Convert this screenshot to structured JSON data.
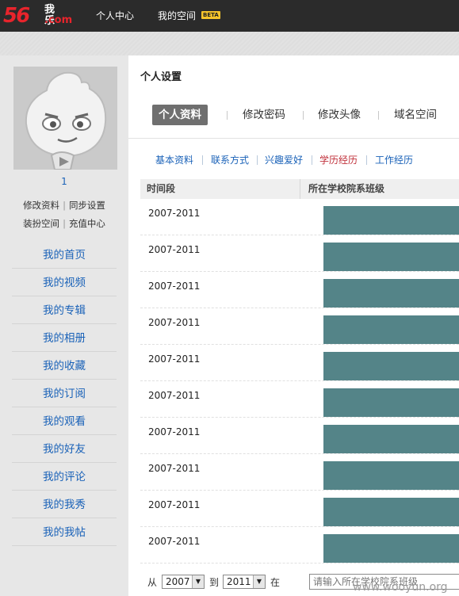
{
  "topbar": {
    "logo_num": "56",
    "logo_cn": "我乐",
    "logo_com": ".com",
    "nav": [
      "个人中心",
      "我的空间"
    ],
    "beta": "BETA"
  },
  "sidebar": {
    "user_name": "1",
    "links_row1": [
      "修改资料",
      "同步设置"
    ],
    "links_row2": [
      "装扮空间",
      "充值中心"
    ],
    "menu": [
      "我的首页",
      "我的视频",
      "我的专辑",
      "我的相册",
      "我的收藏",
      "我的订阅",
      "我的观看",
      "我的好友",
      "我的评论",
      "我的我秀",
      "我的我帖"
    ]
  },
  "main": {
    "title": "个人设置",
    "tabs": [
      {
        "label": "个人资料",
        "active": true
      },
      {
        "label": "修改密码",
        "active": false
      },
      {
        "label": "修改头像",
        "active": false
      },
      {
        "label": "域名空间",
        "active": false
      }
    ],
    "subtabs": [
      {
        "label": "基本资料",
        "active": false
      },
      {
        "label": "联系方式",
        "active": false
      },
      {
        "label": "兴趣爱好",
        "active": false
      },
      {
        "label": "学历经历",
        "active": true
      },
      {
        "label": "工作经历",
        "active": false
      }
    ],
    "table": {
      "headers": [
        "时间段",
        "所在学校院系班级"
      ],
      "rows": [
        {
          "period": "2007-2011"
        },
        {
          "period": "2007-2011"
        },
        {
          "period": "2007-2011"
        },
        {
          "period": "2007-2011"
        },
        {
          "period": "2007-2011"
        },
        {
          "period": "2007-2011"
        },
        {
          "period": "2007-2011"
        },
        {
          "period": "2007-2011"
        },
        {
          "period": "2007-2011"
        },
        {
          "period": "2007-2011"
        }
      ]
    },
    "form": {
      "from_label": "从",
      "from_year": "2007",
      "to_label": "到",
      "to_year": "2011",
      "at_label": "在",
      "school_placeholder": "请输入所在学校院系班级"
    }
  },
  "watermark": "www.wooyun.org",
  "colors": {
    "topbar": "#2b2b2b",
    "brand_red": "#e8242c",
    "link_blue": "#1a62b8",
    "active_subtab": "#c0303a",
    "redacted_block": "#548488"
  }
}
